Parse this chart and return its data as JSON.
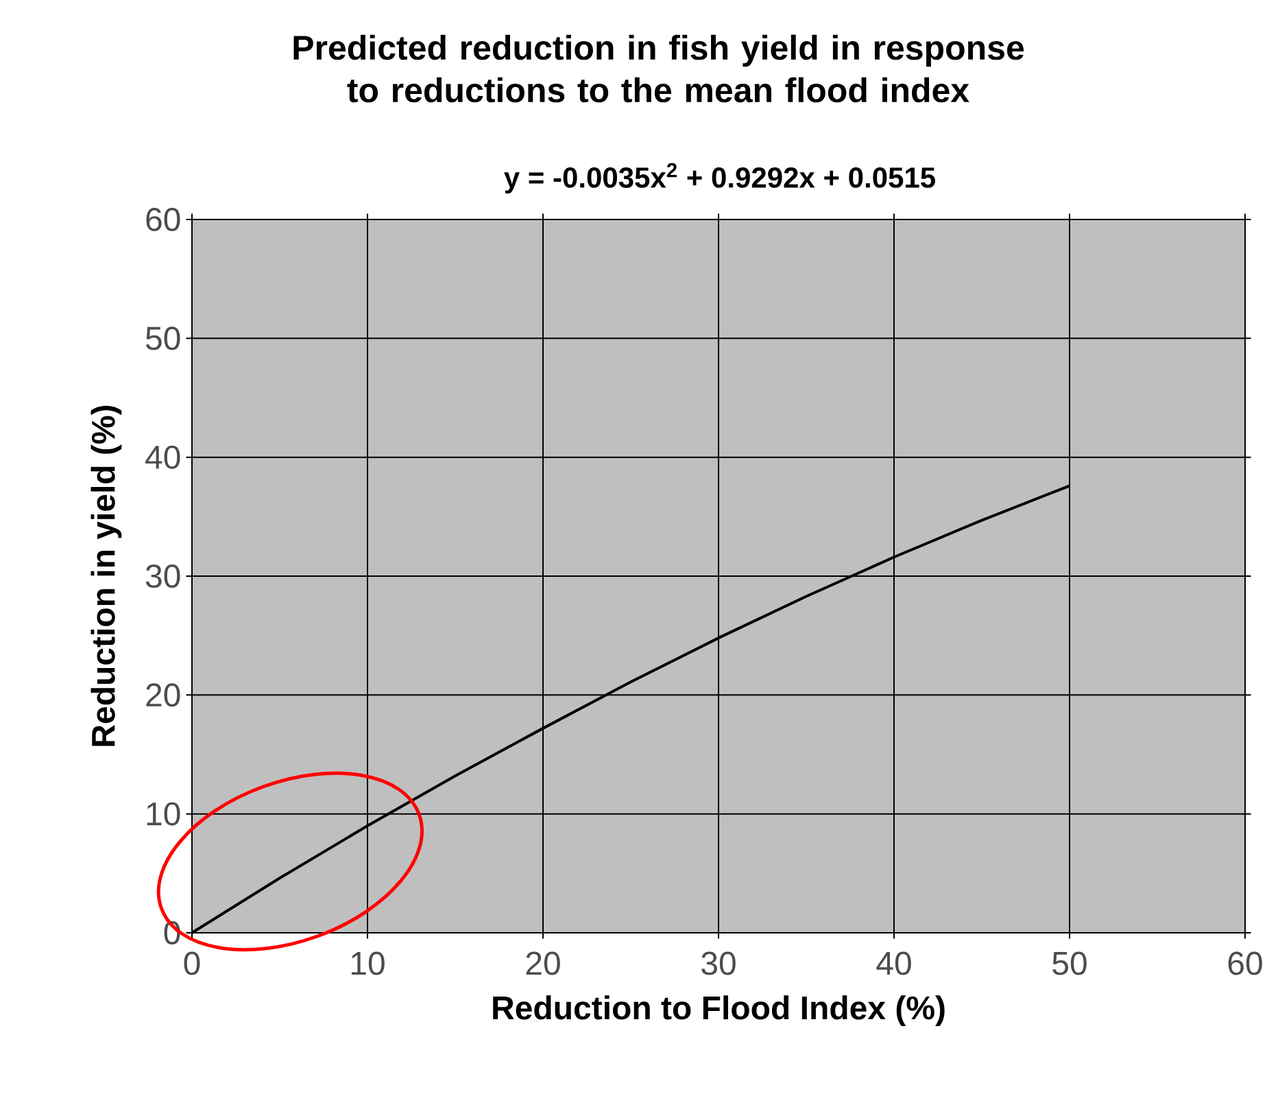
{
  "chart_data": {
    "type": "line",
    "title": "Predicted reduction in fish yield in response to reductions to the mean flood index",
    "subtitle": "y = -0.0035x$^{2}$ + 0.9292x + 0.0515",
    "xlabel": "Reduction to Flood Index (%)",
    "ylabel": "Reduction in yield  (%)",
    "x": [
      0,
      5,
      10,
      15,
      20,
      25,
      30,
      35,
      40,
      45,
      50
    ],
    "series": [
      {
        "color": "#000000",
        "values": [
          0,
          4.6,
          9.0,
          13.2,
          17.2,
          21.1,
          24.8,
          28.3,
          31.6,
          34.7,
          37.6
        ]
      }
    ],
    "xlim": [
      0,
      60
    ],
    "ylim": [
      0,
      60
    ],
    "xticks": [
      0,
      10,
      20,
      30,
      40,
      50,
      60
    ],
    "yticks": [
      0,
      10,
      20,
      30,
      40,
      50,
      60
    ],
    "grid": true,
    "marker": "none",
    "line_style": "solid"
  }
}
